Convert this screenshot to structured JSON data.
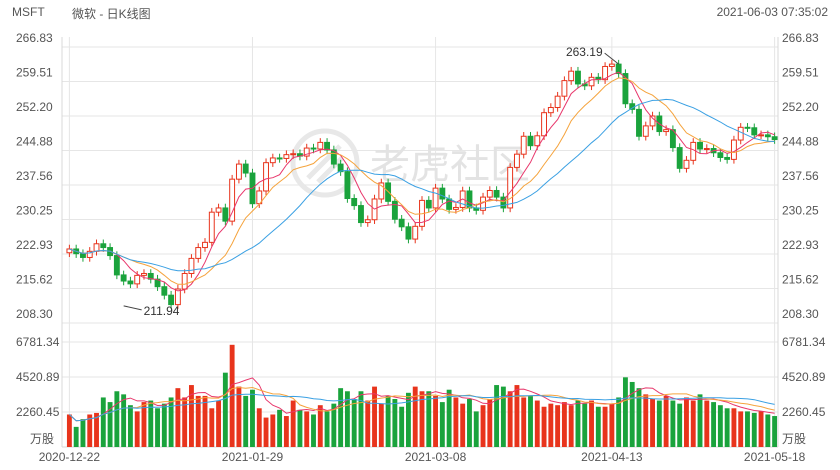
{
  "header": {
    "ticker": "MSFT",
    "title": "微软 - 日K线图",
    "timestamp": "2021-06-03 07:35:02"
  },
  "watermark": "老虎社区",
  "colors": {
    "up": "#e8341c",
    "down": "#1aa33c",
    "ma5": "#e8366b",
    "ma10": "#f5a33c",
    "ma20": "#3aa0e3",
    "grid": "#e6e6e6",
    "axis_text": "#555555"
  },
  "chart_data": [
    {
      "type": "candlestick",
      "price_ticks": [
        "266.83",
        "259.51",
        "252.20",
        "244.88",
        "237.56",
        "230.25",
        "222.93",
        "215.62",
        "208.30"
      ],
      "ylim": [
        208.3,
        266.83
      ],
      "x_tick_labels": [
        "2020-12-22",
        "2021-01-29",
        "2021-03-08",
        "2021-04-13",
        "2021-05-18"
      ],
      "x_tick_index": [
        0,
        27,
        54,
        80,
        104
      ],
      "annotations": [
        {
          "label": "263.19",
          "index": 81,
          "value": 263.19
        },
        {
          "label": "211.94",
          "index": 8,
          "value": 211.94
        }
      ],
      "close": [
        224.0,
        223.0,
        222.2,
        223.5,
        225.1,
        224.3,
        222.6,
        218.5,
        217.2,
        216.6,
        218.4,
        218.8,
        217.6,
        216.0,
        214.2,
        212.2,
        215.5,
        218.8,
        222.0,
        224.3,
        225.4,
        231.8,
        232.7,
        229.9,
        238.8,
        242.0,
        240.1,
        233.6,
        236.3,
        242.3,
        243.3,
        243.2,
        244.0,
        244.2,
        243.7,
        245.4,
        245.2,
        246.6,
        245.0,
        242.0,
        240.4,
        234.7,
        233.2,
        229.6,
        230.2,
        234.6,
        238.0,
        234.1,
        230.3,
        228.7,
        226.1,
        228.8,
        234.3,
        232.7,
        236.9,
        234.6,
        232.4,
        232.8,
        236.3,
        232.7,
        232.2,
        235.0,
        236.4,
        235.0,
        232.7,
        241.3,
        244.1,
        247.9,
        245.9,
        248.0,
        252.9,
        254.0,
        256.4,
        259.7,
        261.7,
        259.0,
        258.6,
        260.4,
        259.9,
        262.7,
        263.2,
        261.2,
        254.8,
        253.6,
        247.9,
        250.1,
        252.2,
        248.9,
        249.3,
        245.5,
        241.1,
        242.8,
        246.6,
        245.2,
        245.3,
        244.4,
        243.4,
        243.0,
        247.1,
        249.8,
        249.7,
        248.2,
        248.2,
        247.8,
        247.2
      ],
      "volume_ticks": [
        "6781.34",
        "4520.89",
        "2260.45"
      ],
      "volume_unit": "万股",
      "volume_max": 6781.34,
      "volume": [
        2100,
        1300,
        1800,
        2100,
        2200,
        3200,
        2900,
        3600,
        3400,
        2700,
        2300,
        2900,
        3000,
        2500,
        2800,
        3200,
        3800,
        3200,
        4000,
        3300,
        3300,
        2500,
        3000,
        4800,
        6600,
        3900,
        3300,
        3700,
        2500,
        1900,
        2100,
        2400,
        2000,
        3000,
        2400,
        2300,
        2100,
        2700,
        2300,
        2800,
        3800,
        3600,
        3100,
        3600,
        3000,
        3900,
        2800,
        3300,
        3100,
        2600,
        3500,
        3900,
        3600,
        3600,
        3300,
        2900,
        3700,
        3200,
        2800,
        3100,
        2300,
        2700,
        3100,
        4000,
        3900,
        3600,
        4000,
        3200,
        3300,
        3000,
        2600,
        2800,
        2700,
        2900,
        2700,
        3000,
        2800,
        3000,
        2600,
        2600,
        2800,
        3200,
        4500,
        4200,
        3800,
        3400,
        3100,
        3000,
        3300,
        3000,
        2800,
        3200,
        3000,
        3400,
        3000,
        2900,
        2700,
        2500,
        2500,
        2300,
        2300,
        2200,
        2300,
        2100,
        2000
      ]
    }
  ]
}
